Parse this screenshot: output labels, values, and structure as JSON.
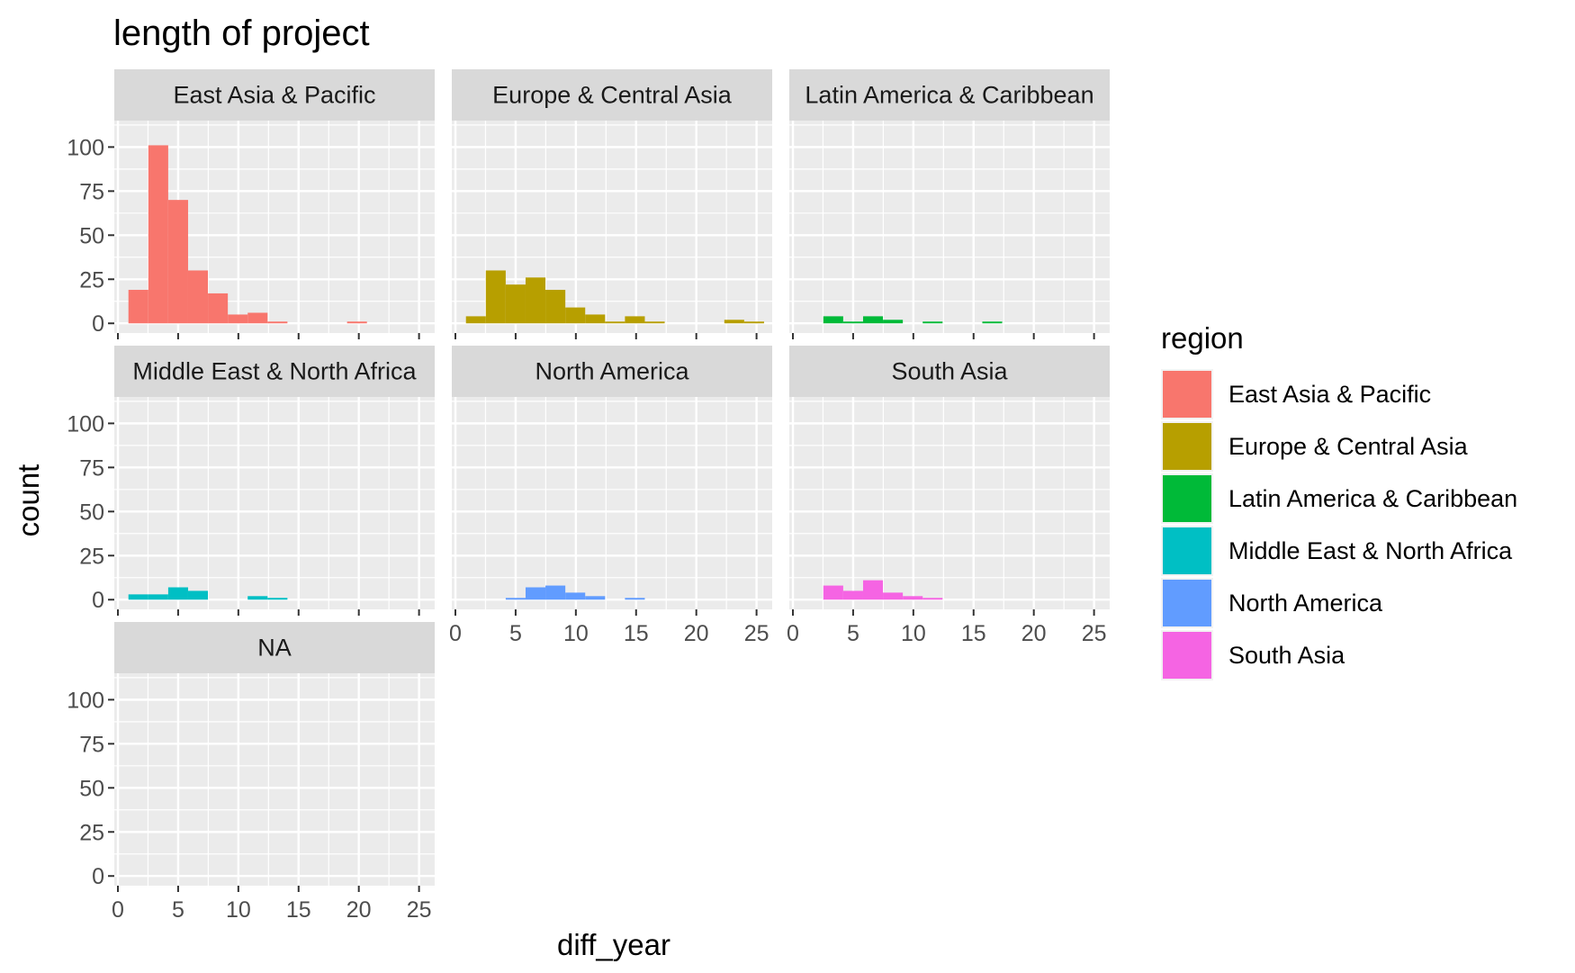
{
  "chart_data": {
    "type": "bar",
    "title": "length of project",
    "xlabel": "diff_year",
    "ylabel": "count",
    "xlim": [
      -0.3,
      26.3
    ],
    "ylim": [
      -5.5,
      115
    ],
    "xticks": [
      0,
      5,
      10,
      15,
      20,
      25
    ],
    "yticks": [
      0,
      25,
      50,
      75,
      100
    ],
    "bin_width": 1.65,
    "legend": {
      "title": "region",
      "position": "right",
      "entries": [
        "East Asia & Pacific",
        "Europe & Central Asia",
        "Latin America & Caribbean",
        "Middle East & North Africa",
        "North America",
        "South Asia"
      ]
    },
    "facets": [
      {
        "label": "East Asia & Pacific",
        "color": "#F8766D",
        "bins": [
          {
            "x": 1.7,
            "count": 19
          },
          {
            "x": 3.35,
            "count": 101
          },
          {
            "x": 5.0,
            "count": 70
          },
          {
            "x": 6.65,
            "count": 30
          },
          {
            "x": 8.3,
            "count": 17
          },
          {
            "x": 9.95,
            "count": 5
          },
          {
            "x": 11.6,
            "count": 6
          },
          {
            "x": 13.25,
            "count": 1
          },
          {
            "x": 19.85,
            "count": 1
          }
        ]
      },
      {
        "label": "Europe & Central Asia",
        "color": "#B79F00",
        "bins": [
          {
            "x": 1.7,
            "count": 4
          },
          {
            "x": 3.35,
            "count": 30
          },
          {
            "x": 5.0,
            "count": 22
          },
          {
            "x": 6.65,
            "count": 26
          },
          {
            "x": 8.3,
            "count": 19
          },
          {
            "x": 9.95,
            "count": 9
          },
          {
            "x": 11.6,
            "count": 5
          },
          {
            "x": 13.25,
            "count": 1
          },
          {
            "x": 14.9,
            "count": 4
          },
          {
            "x": 16.55,
            "count": 1
          },
          {
            "x": 23.15,
            "count": 2
          },
          {
            "x": 24.8,
            "count": 1
          }
        ]
      },
      {
        "label": "Latin America & Caribbean",
        "color": "#00BA38",
        "bins": [
          {
            "x": 3.35,
            "count": 4
          },
          {
            "x": 5.0,
            "count": 1
          },
          {
            "x": 6.65,
            "count": 4
          },
          {
            "x": 8.3,
            "count": 2
          },
          {
            "x": 11.6,
            "count": 1
          },
          {
            "x": 16.55,
            "count": 1
          }
        ]
      },
      {
        "label": "Middle East & North Africa",
        "color": "#00BFC4",
        "bins": [
          {
            "x": 1.7,
            "count": 3
          },
          {
            "x": 3.35,
            "count": 3
          },
          {
            "x": 5.0,
            "count": 7
          },
          {
            "x": 6.65,
            "count": 5
          },
          {
            "x": 11.6,
            "count": 2
          },
          {
            "x": 13.25,
            "count": 1
          }
        ]
      },
      {
        "label": "North America",
        "color": "#619CFF",
        "bins": [
          {
            "x": 5.0,
            "count": 1
          },
          {
            "x": 6.65,
            "count": 7
          },
          {
            "x": 8.3,
            "count": 8
          },
          {
            "x": 9.95,
            "count": 4
          },
          {
            "x": 11.6,
            "count": 2
          },
          {
            "x": 14.9,
            "count": 1
          }
        ]
      },
      {
        "label": "South Asia",
        "color": "#F564E3",
        "bins": [
          {
            "x": 3.35,
            "count": 8
          },
          {
            "x": 5.0,
            "count": 5
          },
          {
            "x": 6.65,
            "count": 11
          },
          {
            "x": 8.3,
            "count": 4
          },
          {
            "x": 9.95,
            "count": 2
          },
          {
            "x": 11.6,
            "count": 1
          }
        ]
      },
      {
        "label": "NA",
        "color": "#999999",
        "bins": []
      }
    ]
  }
}
